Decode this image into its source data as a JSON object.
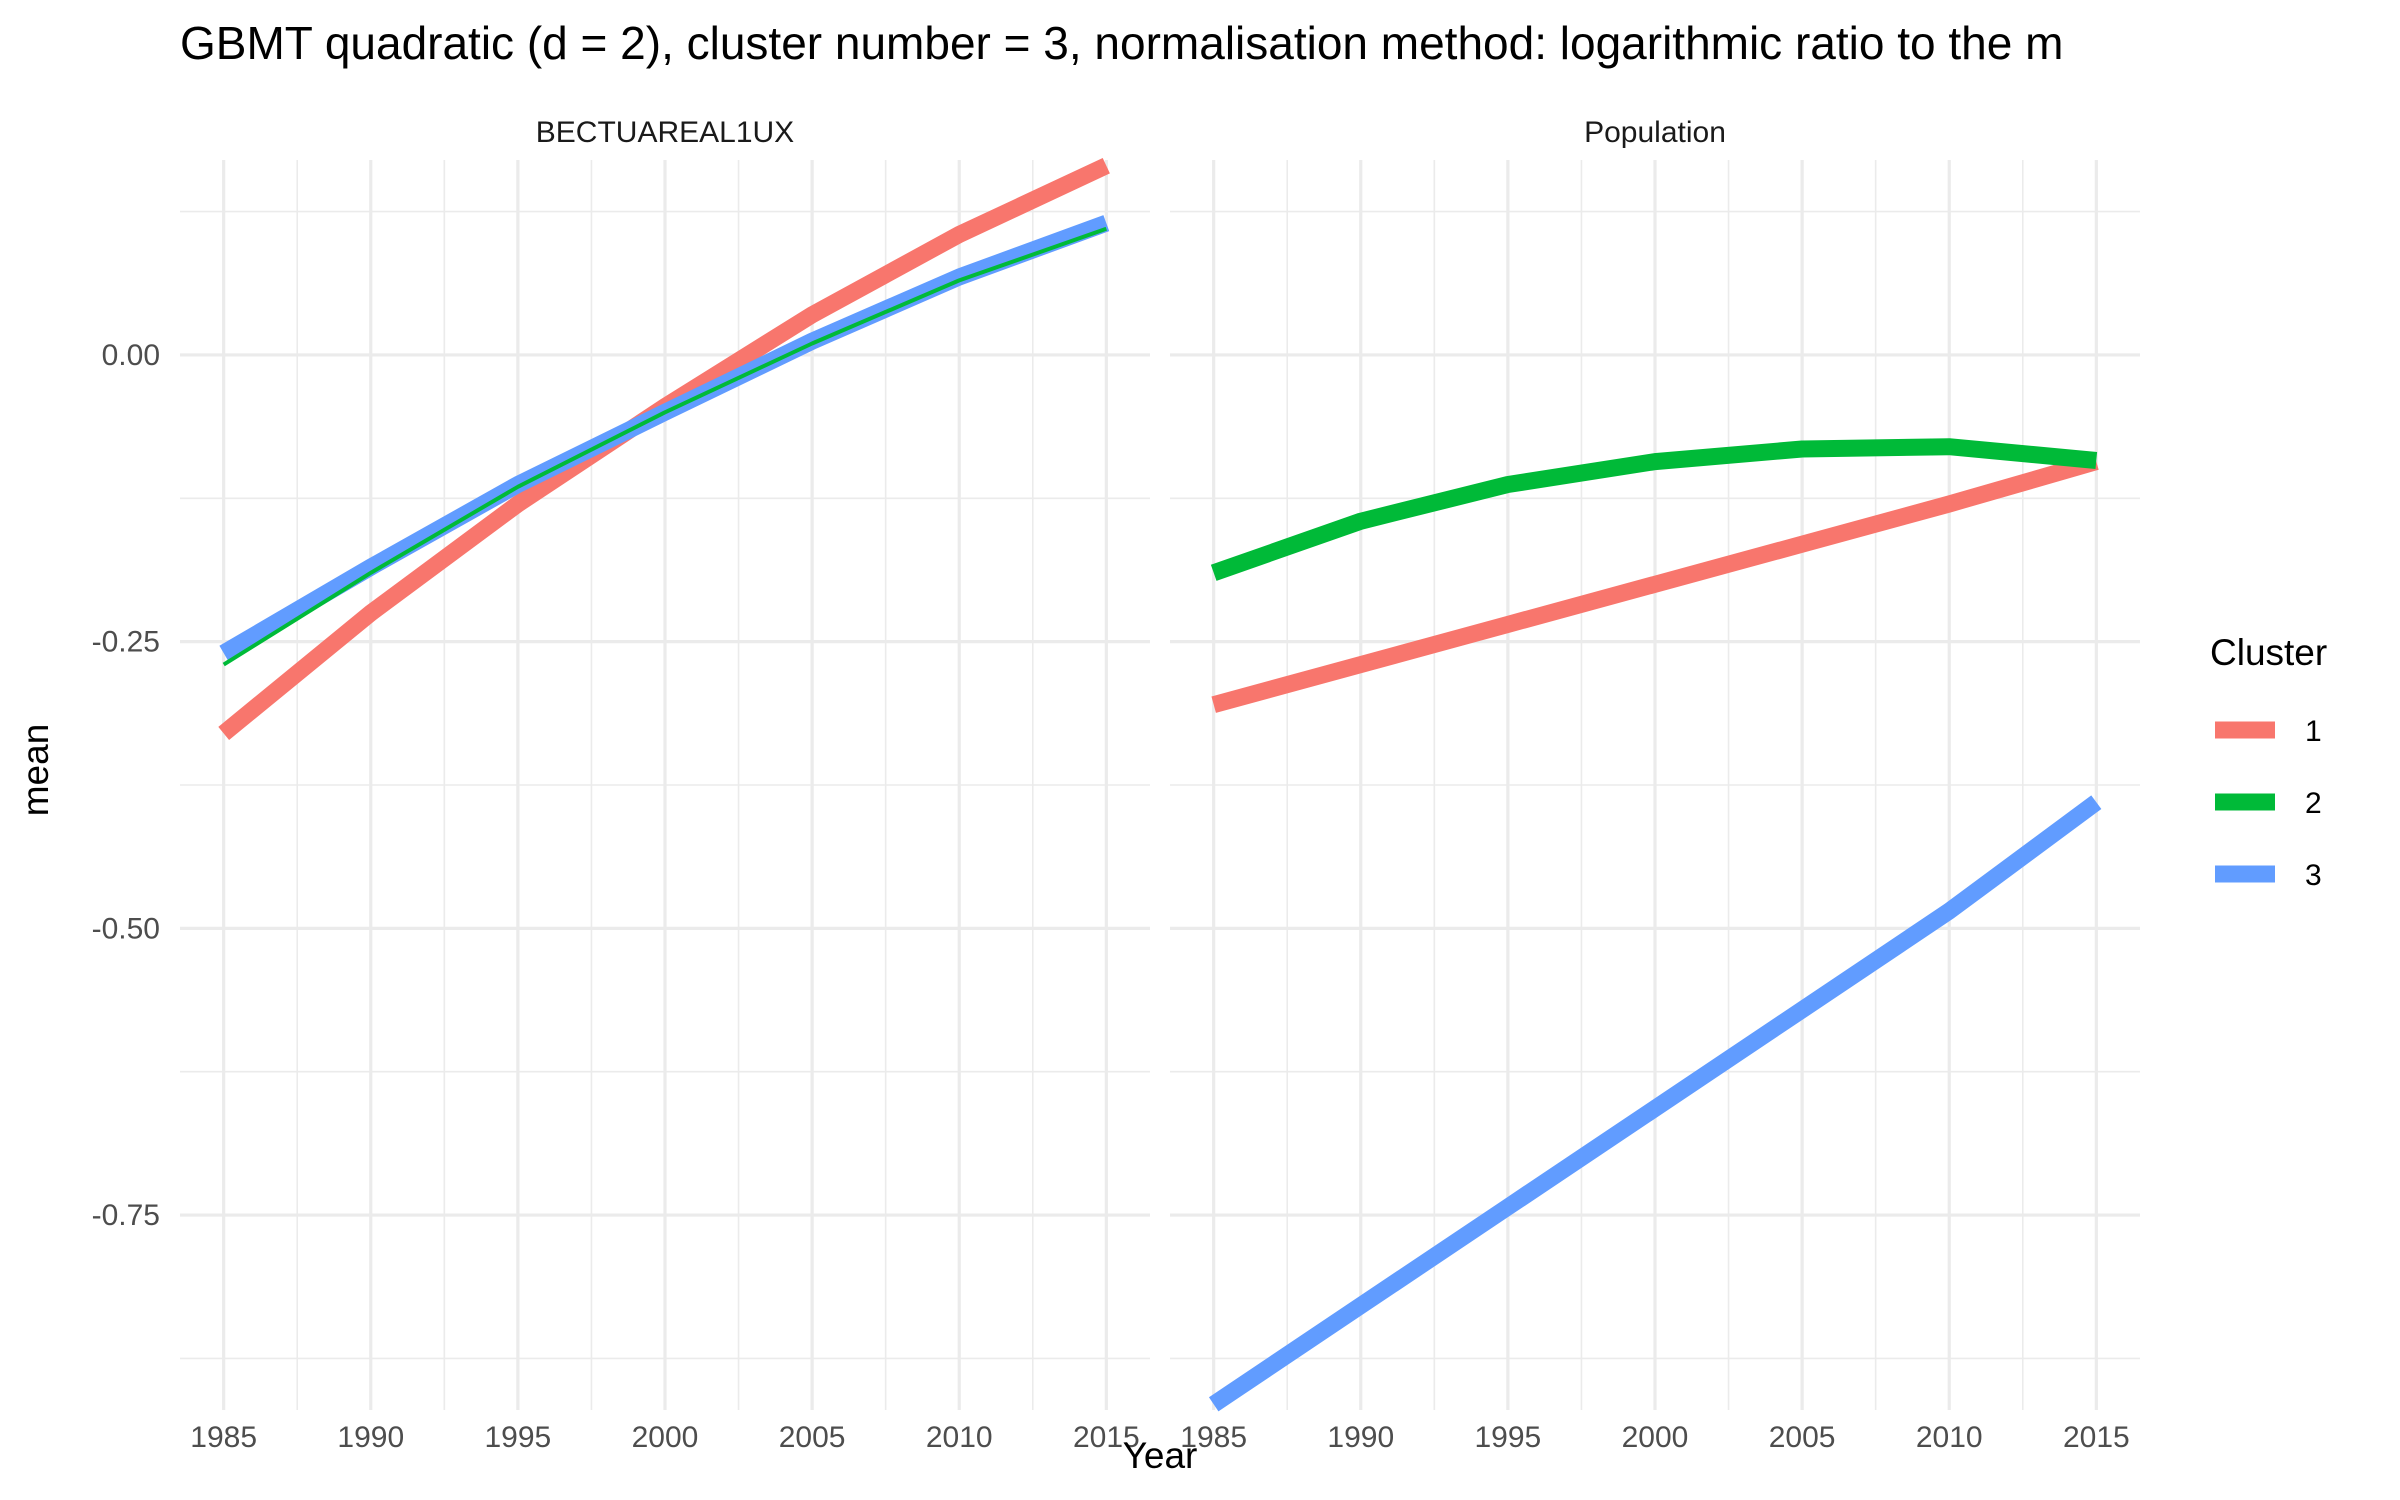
{
  "chart_data": {
    "type": "line",
    "title": "GBMT quadratic (d = 2), cluster number = 3, normalisation method: logarithmic ratio to the m",
    "xlabel": "Year",
    "ylabel": "mean",
    "xlim": [
      1985,
      2015
    ],
    "ylim": [
      -0.92,
      0.17
    ],
    "x_ticks": [
      1985,
      1990,
      1995,
      2000,
      2005,
      2010,
      2015
    ],
    "y_ticks": [
      0.0,
      -0.25,
      -0.5,
      -0.75
    ],
    "y_tick_labels": [
      "0.00",
      "-0.25",
      "-0.50",
      "-0.75"
    ],
    "grid": true,
    "legend": {
      "title": "Cluster",
      "position": "right",
      "entries": [
        {
          "label": "1",
          "color": "#F8766D"
        },
        {
          "label": "2",
          "color": "#00BA38"
        },
        {
          "label": "3",
          "color": "#619CFF"
        }
      ]
    },
    "panels": [
      {
        "strip": "BECTUAREAL1UX",
        "x": [
          1985,
          1990,
          1995,
          2000,
          2005,
          2010,
          2015
        ],
        "series": [
          {
            "name": "1",
            "color": "#F8766D",
            "values": [
              -0.33,
              -0.225,
              -0.13,
              -0.045,
              0.035,
              0.105,
              0.165
            ]
          },
          {
            "name": "2",
            "color": "#00BA38",
            "values": [
              -0.27,
              -0.19,
              -0.115,
              -0.05,
              0.01,
              0.065,
              0.11
            ]
          },
          {
            "name": "3",
            "color": "#619CFF",
            "values": [
              -0.26,
              -0.185,
              -0.113,
              -0.05,
              0.012,
              0.068,
              0.115
            ]
          }
        ]
      },
      {
        "strip": "Population",
        "x": [
          1985,
          1990,
          1995,
          2000,
          2005,
          2010,
          2015
        ],
        "series": [
          {
            "name": "1",
            "color": "#F8766D",
            "values": [
              -0.305,
              -0.27,
              -0.235,
              -0.2,
              -0.165,
              -0.13,
              -0.093
            ]
          },
          {
            "name": "2",
            "color": "#00BA38",
            "values": [
              -0.19,
              -0.145,
              -0.113,
              -0.093,
              -0.082,
              -0.08,
              -0.092
            ]
          },
          {
            "name": "3",
            "color": "#619CFF",
            "values": [
              -0.915,
              -0.829,
              -0.743,
              -0.657,
              -0.571,
              -0.485,
              -0.39
            ]
          }
        ]
      }
    ]
  }
}
